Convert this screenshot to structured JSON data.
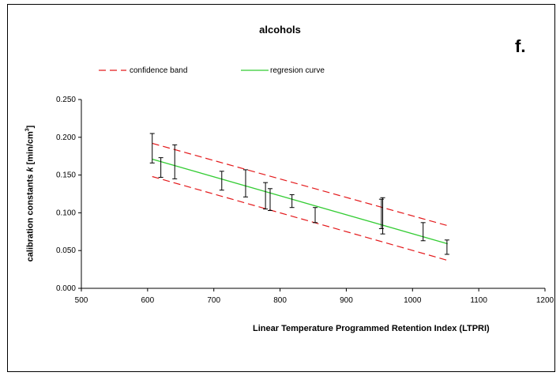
{
  "chart_data": {
    "type": "scatter",
    "title": "alcohols",
    "panel_label": "f.",
    "xlabel": "Linear Temperature Programmed Retention Index (LTPRI)",
    "ylabel_prefix": "calibration constants ",
    "ylabel_symbol": "k",
    "ylabel_unit_base": " [min/cm",
    "ylabel_unit_exp": "3",
    "ylabel_unit_close": "]",
    "xlim": [
      500,
      1200
    ],
    "ylim": [
      0.0,
      0.25
    ],
    "xticks": [
      "500",
      "600",
      "700",
      "800",
      "900",
      "1000",
      "1100",
      "1200"
    ],
    "yticks": [
      "0.000",
      "0.050",
      "0.100",
      "0.150",
      "0.200",
      "0.250"
    ],
    "grid": false,
    "legend_position": "top-left",
    "series": [
      {
        "name": "confidence band",
        "style": "dashed",
        "color": "#e41a1c",
        "x": [
          607,
          1053
        ],
        "y_upper": [
          0.192,
          0.083
        ],
        "y_lower": [
          0.148,
          0.037
        ]
      },
      {
        "name": "regresion curve",
        "style": "solid",
        "color": "#33cc33",
        "x": [
          607,
          1053
        ],
        "y": [
          0.171,
          0.059
        ]
      }
    ],
    "errorbars": [
      {
        "x": 607,
        "low": 0.166,
        "high": 0.205
      },
      {
        "x": 620,
        "low": 0.147,
        "high": 0.173
      },
      {
        "x": 641,
        "low": 0.145,
        "high": 0.19
      },
      {
        "x": 712,
        "low": 0.13,
        "high": 0.155
      },
      {
        "x": 748,
        "low": 0.121,
        "high": 0.157
      },
      {
        "x": 778,
        "low": 0.105,
        "high": 0.14
      },
      {
        "x": 785,
        "low": 0.103,
        "high": 0.132
      },
      {
        "x": 818,
        "low": 0.107,
        "high": 0.124
      },
      {
        "x": 853,
        "low": 0.087,
        "high": 0.107
      },
      {
        "x": 953,
        "low": 0.079,
        "high": 0.118
      },
      {
        "x": 955,
        "low": 0.072,
        "high": 0.12
      },
      {
        "x": 1016,
        "low": 0.063,
        "high": 0.087
      },
      {
        "x": 1052,
        "low": 0.045,
        "high": 0.064
      }
    ]
  }
}
